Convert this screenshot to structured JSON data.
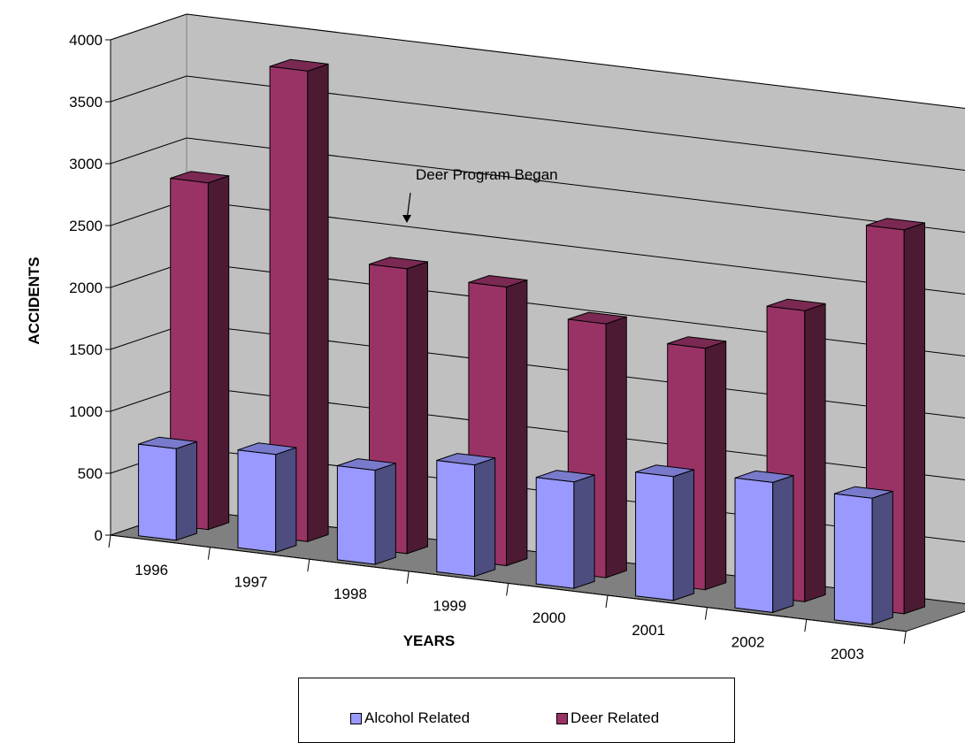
{
  "chart_data": {
    "type": "bar",
    "title": "",
    "xlabel": "YEARS",
    "ylabel": "ACCIDENTS",
    "categories": [
      "1996",
      "1997",
      "1998",
      "1999",
      "2000",
      "2001",
      "2002",
      "2003"
    ],
    "ylim": [
      0,
      4000
    ],
    "yticks": [
      "0",
      "500",
      "1000",
      "1500",
      "2000",
      "2500",
      "3000",
      "3500",
      "4000"
    ],
    "grid": true,
    "legend_position": "bottom",
    "annotation": "Deer Program Began",
    "series": [
      {
        "name": "Alcohol Related",
        "color": "#9999FF",
        "values": [
          740,
          790,
          760,
          900,
          860,
          1000,
          1050,
          1020
        ]
      },
      {
        "name": "Deer Related",
        "color": "#993366",
        "values": [
          2800,
          3800,
          2300,
          2250,
          2050,
          1950,
          2350,
          3100
        ]
      }
    ]
  }
}
